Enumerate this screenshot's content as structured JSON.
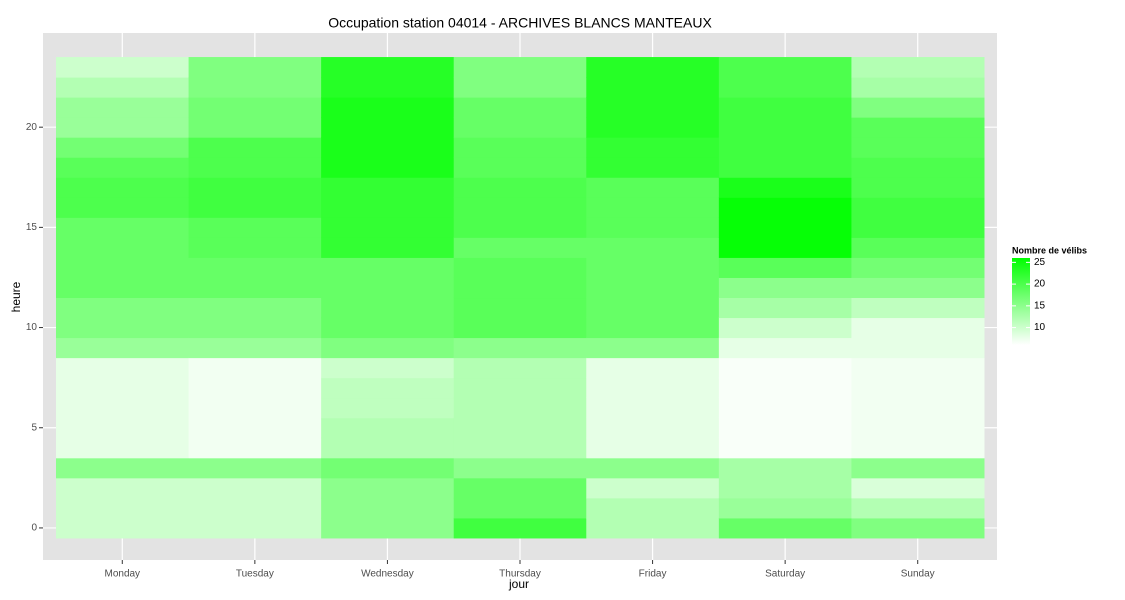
{
  "chart_data": {
    "type": "heatmap",
    "title": "Occupation station 04014 - ARCHIVES BLANCS MANTEAUX",
    "x_label": "jour",
    "y_label": "heure",
    "categories": [
      "Monday",
      "Tuesday",
      "Wednesday",
      "Thursday",
      "Friday",
      "Saturday",
      "Sunday"
    ],
    "y": [
      0,
      1,
      2,
      3,
      4,
      5,
      6,
      7,
      8,
      9,
      10,
      11,
      12,
      13,
      14,
      15,
      16,
      17,
      18,
      19,
      20,
      21,
      22,
      23
    ],
    "values": [
      [
        10,
        10,
        10,
        15,
        8,
        8,
        8,
        8,
        8,
        14,
        16,
        16,
        18,
        18,
        18,
        18,
        20,
        20,
        19,
        17,
        14,
        14,
        12,
        10
      ],
      [
        10,
        10,
        10,
        15,
        7,
        7,
        7,
        7,
        7,
        14,
        16,
        16,
        18,
        18,
        19,
        19,
        21,
        21,
        20,
        20,
        17,
        17,
        16,
        16
      ],
      [
        15,
        15,
        15,
        17,
        12,
        12,
        11,
        11,
        10,
        16,
        18,
        18,
        18,
        18,
        22,
        22,
        22,
        22,
        24,
        24,
        24,
        24,
        23,
        23
      ],
      [
        21,
        18,
        18,
        15,
        12,
        12,
        12,
        12,
        12,
        15,
        19,
        19,
        19,
        19,
        18,
        20,
        20,
        20,
        19,
        19,
        18,
        18,
        16,
        16
      ],
      [
        12,
        12,
        10,
        15,
        8,
        8,
        8,
        8,
        8,
        15,
        18,
        18,
        18,
        18,
        18,
        19,
        19,
        19,
        22,
        22,
        23,
        23,
        23,
        23
      ],
      [
        18,
        14,
        13,
        13,
        6.5,
        6.5,
        6.5,
        6.5,
        6.5,
        8,
        10,
        13,
        15,
        19,
        25.5,
        25.5,
        25.5,
        24,
        21,
        21,
        21,
        21,
        20,
        20
      ],
      [
        16,
        12,
        9,
        15,
        7,
        7,
        7,
        7,
        7,
        8,
        8,
        11,
        15,
        17,
        19,
        21,
        21,
        20,
        20,
        19,
        19,
        16,
        13,
        12
      ]
    ],
    "ylim": [
      -1.6,
      24.7
    ],
    "yticks": [
      0,
      5,
      10,
      15,
      20
    ],
    "legend_title": "Nombre de vélibs",
    "color_lim": [
      6,
      26
    ],
    "color_ticks": [
      10,
      15,
      20,
      25
    ],
    "low_color": "#ffffff",
    "high_color": "#00ff00",
    "panel_color": "#e3e3e3",
    "grid": true
  }
}
